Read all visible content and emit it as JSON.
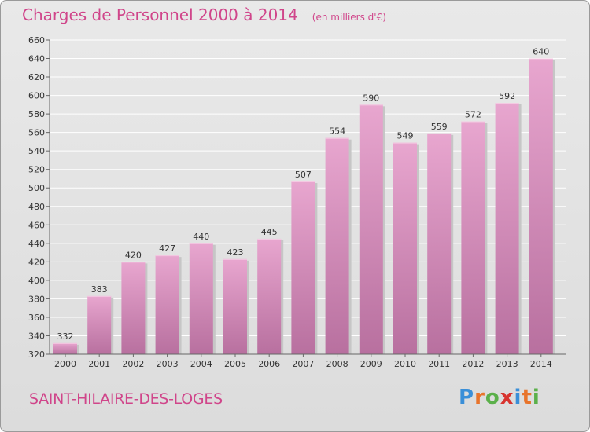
{
  "header": {
    "title": "Charges de Personnel 2000 à 2014",
    "subtitle": "(en milliers d'€)"
  },
  "footer": {
    "commune": "SAINT-HILAIRE-DES-LOGES",
    "logo": "Proxiti",
    "logo_colors": [
      "#3a8fd8",
      "#e8742b",
      "#5bb04a",
      "#d8342f",
      "#3a8fd8",
      "#e8742b",
      "#5bb04a"
    ]
  },
  "colors": {
    "accent": "#d0458a",
    "bar_top": "#e8a6cf",
    "bar_bottom": "#b8709f",
    "grid": "#ffffff",
    "axis_text": "#333333"
  },
  "chart_data": {
    "type": "bar",
    "categories": [
      "2000",
      "2001",
      "2002",
      "2003",
      "2004",
      "2005",
      "2006",
      "2007",
      "2008",
      "2009",
      "2010",
      "2011",
      "2012",
      "2013",
      "2014"
    ],
    "values": [
      332,
      383,
      420,
      427,
      440,
      423,
      445,
      507,
      554,
      590,
      549,
      559,
      572,
      592,
      640
    ],
    "data_labels": [
      "332",
      "383",
      "420",
      "427",
      "440",
      "423",
      "445",
      "507",
      "554",
      "590",
      "549",
      "559",
      "572",
      "592",
      "640"
    ],
    "ylim": [
      320,
      660
    ],
    "yticks": [
      "320",
      "340",
      "360",
      "380",
      "400",
      "420",
      "440",
      "460",
      "480",
      "500",
      "520",
      "540",
      "560",
      "580",
      "600",
      "620",
      "640",
      "660"
    ],
    "grid": true,
    "legend": "none"
  }
}
